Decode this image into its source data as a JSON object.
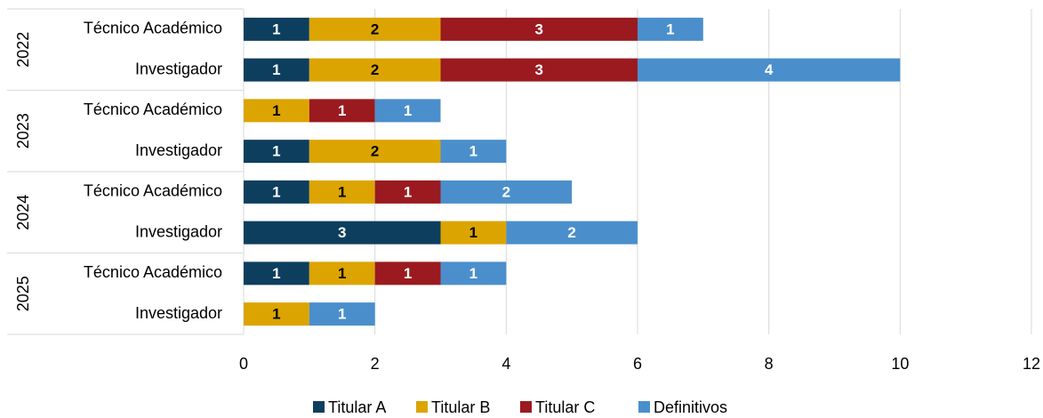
{
  "chart_data": {
    "type": "stacked-barh",
    "category_groups": [
      "2022",
      "2023",
      "2024",
      "2025"
    ],
    "categories": [
      "Técnico Académico",
      "Investigador",
      "Técnico Académico",
      "Investigador",
      "Técnico Académico",
      "Investigador",
      "Técnico Académico",
      "Investigador"
    ],
    "series": [
      {
        "name": "Titular A",
        "color": "#0d3e5e",
        "label_color": "#ffffff",
        "values": [
          1,
          1,
          null,
          1,
          1,
          3,
          1,
          null
        ]
      },
      {
        "name": "Titular B",
        "color": "#dca400",
        "label_color": "#000000",
        "values": [
          2,
          2,
          1,
          2,
          1,
          1,
          1,
          1
        ]
      },
      {
        "name": "Titular C",
        "color": "#9a1a1f",
        "label_color": "#ffffff",
        "values": [
          3,
          3,
          1,
          null,
          1,
          null,
          1,
          null
        ]
      },
      {
        "name": "Definitivos",
        "color": "#4a8fcc",
        "label_color": "#ffffff",
        "values": [
          1,
          4,
          1,
          1,
          2,
          2,
          1,
          1
        ]
      }
    ],
    "xlim": [
      0,
      12
    ],
    "xticks": [
      0,
      2,
      4,
      6,
      8,
      10,
      12
    ],
    "grid": true,
    "legend": "bottom"
  }
}
